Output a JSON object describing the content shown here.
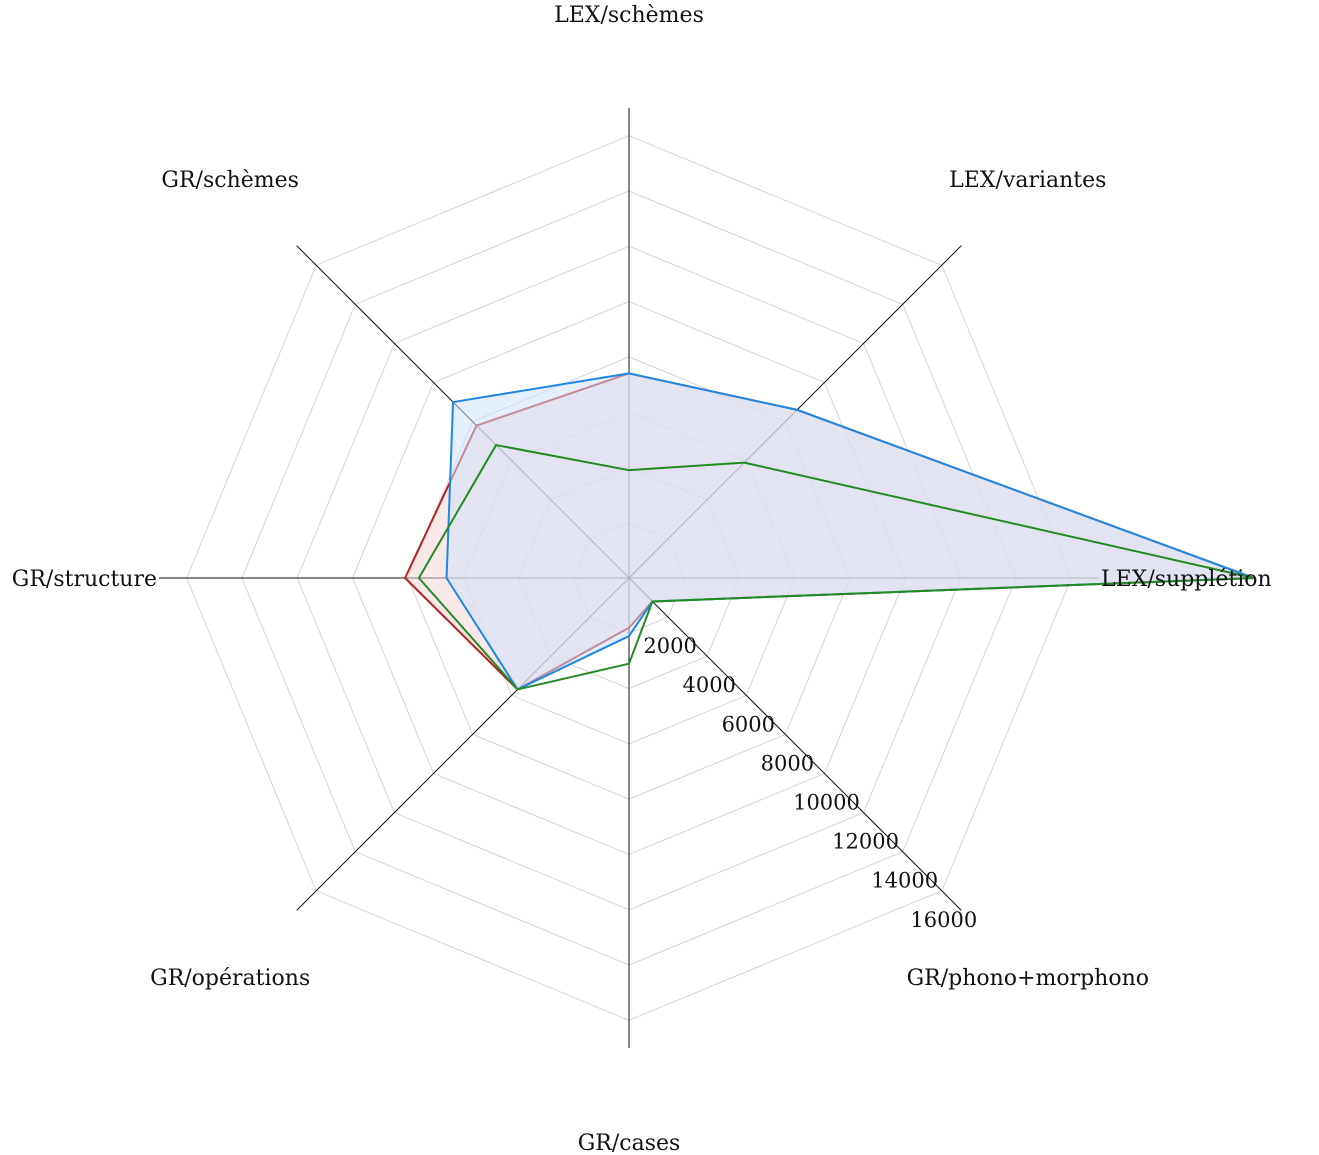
{
  "chart_data": {
    "type": "radar",
    "axes": [
      "LEX/schèmes",
      "LEX/variantes",
      "LEX/supplétion",
      "GR/phono+morphono",
      "GR/cases",
      "GR/opérations",
      "GR/structure",
      "GR/schèmes"
    ],
    "range": [
      0,
      17000
    ],
    "ticks": [
      2000,
      4000,
      6000,
      8000,
      10000,
      12000,
      14000,
      16000
    ],
    "grid": true,
    "series": [
      {
        "color": "#b22222",
        "fill": "#f4d6d6",
        "values": [
          7400,
          8600,
          22600,
          1200,
          1800,
          5700,
          8100,
          7800
        ]
      },
      {
        "color": "#1e88e5",
        "fill": "#cfe2f7",
        "values": [
          7400,
          8600,
          22600,
          1200,
          2100,
          5700,
          6600,
          9000
        ]
      },
      {
        "color": "#228b22",
        "fill": "none",
        "values": [
          3900,
          5900,
          22600,
          1200,
          3100,
          5700,
          7600,
          6800
        ]
      }
    ]
  }
}
